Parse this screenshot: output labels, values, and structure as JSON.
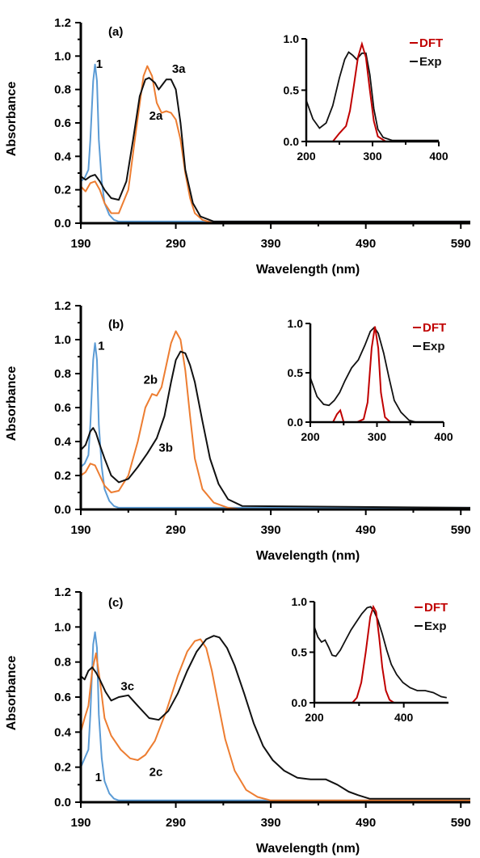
{
  "colors": {
    "compound1": "#5b9bd5",
    "seriesB": "#ed7d31",
    "seriesC": "#111111",
    "dft": "#c00000",
    "exp": "#111111"
  },
  "chart_data": [
    {
      "type": "line",
      "panel_label": "(a)",
      "xlabel": "Wavelength (nm)",
      "ylabel": "Absorbance",
      "xlim": [
        190,
        600
      ],
      "ylim": [
        0,
        1.2
      ],
      "xticks": [
        190,
        290,
        390,
        490,
        590
      ],
      "yticks": [
        0.0,
        0.2,
        0.4,
        0.6,
        0.8,
        1.0,
        1.2
      ],
      "series": [
        {
          "name": "1",
          "color": "compound1",
          "label_at": [
            206,
            0.93
          ],
          "x": [
            190,
            194,
            198,
            200,
            203,
            205,
            207,
            209,
            212,
            215,
            220,
            225,
            230,
            600
          ],
          "y": [
            0.25,
            0.27,
            0.32,
            0.5,
            0.85,
            0.95,
            0.85,
            0.5,
            0.25,
            0.12,
            0.05,
            0.02,
            0.01,
            0.01
          ]
        },
        {
          "name": "2a",
          "color": "seriesB",
          "label_at": [
            262,
            0.62
          ],
          "x": [
            190,
            195,
            200,
            205,
            210,
            215,
            222,
            230,
            240,
            248,
            256,
            260,
            265,
            270,
            275,
            280,
            285,
            290,
            295,
            300,
            305,
            310,
            318,
            330,
            600
          ],
          "y": [
            0.22,
            0.19,
            0.24,
            0.25,
            0.2,
            0.12,
            0.06,
            0.06,
            0.2,
            0.55,
            0.88,
            0.94,
            0.88,
            0.72,
            0.66,
            0.67,
            0.66,
            0.62,
            0.5,
            0.3,
            0.15,
            0.06,
            0.02,
            0.0,
            0.0
          ]
        },
        {
          "name": "3a",
          "color": "seriesC",
          "label_at": [
            286,
            0.9
          ],
          "x": [
            190,
            195,
            200,
            205,
            210,
            215,
            222,
            230,
            238,
            245,
            252,
            258,
            262,
            268,
            272,
            276,
            280,
            285,
            290,
            295,
            300,
            308,
            316,
            330,
            600
          ],
          "y": [
            0.28,
            0.26,
            0.28,
            0.29,
            0.25,
            0.2,
            0.15,
            0.14,
            0.25,
            0.5,
            0.76,
            0.86,
            0.87,
            0.84,
            0.8,
            0.83,
            0.86,
            0.86,
            0.8,
            0.6,
            0.32,
            0.12,
            0.04,
            0.01,
            0.01
          ]
        }
      ],
      "inset": {
        "xlim": [
          200,
          400
        ],
        "ylim": [
          0,
          1.0
        ],
        "xticks": [
          200,
          300,
          400
        ],
        "yticks": [
          0.0,
          0.5,
          1.0
        ],
        "legend": [
          "DFT",
          "Exp"
        ],
        "dft": {
          "x": [
            200,
            240,
            250,
            260,
            266,
            272,
            278,
            284,
            290,
            296,
            302,
            308,
            320,
            400
          ],
          "y": [
            0,
            0,
            0.08,
            0.15,
            0.3,
            0.55,
            0.82,
            0.95,
            0.82,
            0.5,
            0.2,
            0.05,
            0,
            0
          ]
        },
        "exp": {
          "x": [
            200,
            210,
            220,
            230,
            240,
            250,
            258,
            264,
            270,
            276,
            284,
            290,
            296,
            302,
            308,
            316,
            330,
            400
          ],
          "y": [
            0.4,
            0.22,
            0.13,
            0.18,
            0.35,
            0.62,
            0.8,
            0.87,
            0.84,
            0.8,
            0.86,
            0.86,
            0.65,
            0.32,
            0.12,
            0.04,
            0.01,
            0.01
          ]
        }
      }
    },
    {
      "type": "line",
      "panel_label": "(b)",
      "xlabel": "Wavelength (nm)",
      "ylabel": "Absorbance",
      "xlim": [
        190,
        600
      ],
      "ylim": [
        0,
        1.2
      ],
      "xticks": [
        190,
        290,
        390,
        490,
        590
      ],
      "yticks": [
        0.0,
        0.2,
        0.4,
        0.6,
        0.8,
        1.0,
        1.2
      ],
      "series": [
        {
          "name": "1",
          "color": "compound1",
          "label_at": [
            208,
            0.94
          ],
          "x": [
            190,
            194,
            198,
            200,
            203,
            205,
            207,
            209,
            212,
            215,
            220,
            225,
            230,
            600
          ],
          "y": [
            0.25,
            0.27,
            0.32,
            0.5,
            0.88,
            0.98,
            0.88,
            0.5,
            0.25,
            0.12,
            0.05,
            0.02,
            0.01,
            0.01
          ]
        },
        {
          "name": "2b",
          "color": "seriesB",
          "label_at": [
            256,
            0.74
          ],
          "x": [
            190,
            195,
            200,
            205,
            210,
            215,
            222,
            230,
            240,
            250,
            258,
            265,
            270,
            275,
            280,
            285,
            290,
            295,
            300,
            305,
            310,
            318,
            330,
            345,
            360,
            600
          ],
          "y": [
            0.2,
            0.22,
            0.27,
            0.26,
            0.2,
            0.14,
            0.1,
            0.11,
            0.2,
            0.4,
            0.6,
            0.68,
            0.67,
            0.72,
            0.85,
            0.98,
            1.05,
            1.0,
            0.82,
            0.55,
            0.3,
            0.12,
            0.04,
            0.01,
            0.0,
            0.0
          ]
        },
        {
          "name": "3b",
          "color": "seriesC",
          "label_at": [
            272,
            0.34
          ],
          "x": [
            190,
            195,
            200,
            203,
            206,
            210,
            215,
            222,
            230,
            240,
            250,
            260,
            270,
            278,
            285,
            290,
            295,
            300,
            305,
            310,
            318,
            326,
            335,
            345,
            360,
            600
          ],
          "y": [
            0.35,
            0.38,
            0.46,
            0.48,
            0.45,
            0.38,
            0.3,
            0.2,
            0.16,
            0.18,
            0.25,
            0.33,
            0.42,
            0.55,
            0.75,
            0.88,
            0.93,
            0.92,
            0.85,
            0.75,
            0.52,
            0.3,
            0.15,
            0.06,
            0.02,
            0.01
          ]
        }
      ],
      "inset": {
        "xlim": [
          200,
          400
        ],
        "ylim": [
          0,
          1.0
        ],
        "xticks": [
          200,
          300,
          400
        ],
        "yticks": [
          0.0,
          0.5,
          1.0
        ],
        "legend": [
          "DFT",
          "Exp"
        ],
        "dft": {
          "x": [
            200,
            234,
            240,
            245,
            250,
            270,
            280,
            286,
            292,
            297,
            302,
            306,
            312,
            320,
            400
          ],
          "y": [
            0,
            0,
            0.08,
            0.12,
            0,
            0,
            0.03,
            0.2,
            0.75,
            0.97,
            0.75,
            0.3,
            0.05,
            0,
            0
          ]
        },
        "exp": {
          "x": [
            200,
            210,
            220,
            228,
            236,
            244,
            252,
            262,
            272,
            282,
            290,
            296,
            302,
            310,
            318,
            326,
            336,
            348,
            358
          ],
          "y": [
            0.45,
            0.26,
            0.18,
            0.17,
            0.22,
            0.3,
            0.42,
            0.55,
            0.63,
            0.78,
            0.92,
            0.96,
            0.9,
            0.7,
            0.45,
            0.22,
            0.1,
            0.02,
            0.0
          ]
        }
      }
    },
    {
      "type": "line",
      "panel_label": "(c)",
      "xlabel": "Wavelength (nm)",
      "ylabel": "Absorbance",
      "xlim": [
        190,
        600
      ],
      "ylim": [
        0,
        1.2
      ],
      "xticks": [
        190,
        290,
        390,
        490,
        590
      ],
      "yticks": [
        0.0,
        0.2,
        0.4,
        0.6,
        0.8,
        1.0,
        1.2
      ],
      "series": [
        {
          "name": "1",
          "color": "compound1",
          "label_at": [
            205,
            0.12
          ],
          "x": [
            190,
            194,
            198,
            200,
            203,
            205,
            207,
            209,
            212,
            215,
            220,
            225,
            230,
            600
          ],
          "y": [
            0.2,
            0.25,
            0.3,
            0.5,
            0.9,
            0.97,
            0.88,
            0.5,
            0.25,
            0.12,
            0.05,
            0.02,
            0.01,
            0.01
          ]
        },
        {
          "name": "2c",
          "color": "seriesB",
          "label_at": [
            262,
            0.15
          ],
          "x": [
            190,
            194,
            198,
            202,
            206,
            210,
            215,
            222,
            232,
            242,
            250,
            258,
            268,
            280,
            292,
            302,
            310,
            316,
            322,
            328,
            334,
            342,
            352,
            364,
            376,
            390,
            600
          ],
          "y": [
            0.4,
            0.48,
            0.55,
            0.75,
            0.85,
            0.7,
            0.48,
            0.38,
            0.3,
            0.25,
            0.24,
            0.27,
            0.35,
            0.52,
            0.72,
            0.86,
            0.92,
            0.93,
            0.88,
            0.75,
            0.58,
            0.36,
            0.18,
            0.07,
            0.03,
            0.01,
            0.01
          ]
        },
        {
          "name": "3c",
          "color": "seriesC",
          "label_at": [
            232,
            0.64
          ],
          "x": [
            190,
            194,
            198,
            202,
            206,
            210,
            216,
            222,
            230,
            240,
            250,
            262,
            272,
            282,
            292,
            302,
            312,
            322,
            330,
            336,
            344,
            352,
            362,
            372,
            382,
            392,
            404,
            418,
            432,
            448,
            460,
            472,
            482,
            494,
            510,
            540,
            600
          ],
          "y": [
            0.72,
            0.7,
            0.75,
            0.77,
            0.74,
            0.7,
            0.63,
            0.58,
            0.6,
            0.61,
            0.55,
            0.48,
            0.47,
            0.52,
            0.62,
            0.75,
            0.86,
            0.93,
            0.95,
            0.94,
            0.88,
            0.78,
            0.62,
            0.45,
            0.32,
            0.24,
            0.18,
            0.14,
            0.13,
            0.13,
            0.1,
            0.06,
            0.04,
            0.02,
            0.02,
            0.02,
            0.02
          ]
        }
      ],
      "inset": {
        "xlim": [
          200,
          500
        ],
        "ylim": [
          0,
          1.0
        ],
        "xticks": [
          200,
          400
        ],
        "yticks": [
          0.0,
          0.5,
          1.0
        ],
        "legend": [
          "DFT",
          "Exp"
        ],
        "dft": {
          "x": [
            200,
            285,
            295,
            305,
            315,
            325,
            332,
            338,
            345,
            352,
            360,
            368,
            378,
            500
          ],
          "y": [
            0,
            0,
            0.05,
            0.2,
            0.5,
            0.85,
            0.95,
            0.9,
            0.65,
            0.35,
            0.12,
            0.03,
            0,
            0
          ]
        },
        "exp": {
          "x": [
            200,
            208,
            216,
            224,
            232,
            240,
            248,
            258,
            270,
            282,
            294,
            306,
            318,
            326,
            334,
            342,
            352,
            362,
            372,
            384,
            398,
            414,
            430,
            448,
            466,
            484,
            496
          ],
          "y": [
            0.75,
            0.65,
            0.6,
            0.62,
            0.55,
            0.47,
            0.46,
            0.52,
            0.62,
            0.72,
            0.8,
            0.88,
            0.94,
            0.95,
            0.9,
            0.82,
            0.68,
            0.52,
            0.38,
            0.28,
            0.2,
            0.15,
            0.12,
            0.12,
            0.1,
            0.06,
            0.05
          ]
        }
      }
    }
  ]
}
